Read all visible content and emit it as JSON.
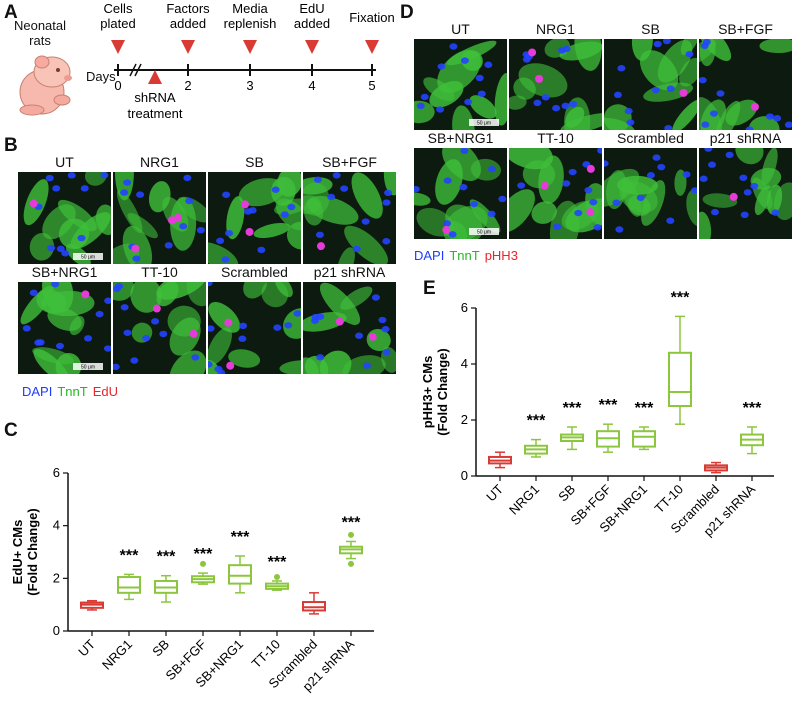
{
  "panels": {
    "A": {
      "label": "A",
      "animal_label_line1": "Neonatal",
      "animal_label_line2": "rats",
      "axis_label": "Days",
      "days": [
        "0",
        "2",
        "3",
        "4",
        "5"
      ],
      "events": [
        {
          "line1": "Cells",
          "line2": "plated",
          "day": 0
        },
        {
          "line1": "Factors",
          "line2": "added",
          "day": 2
        },
        {
          "line1": "Media",
          "line2": "replenish",
          "day": 3
        },
        {
          "line1": "EdU",
          "line2": "added",
          "day": 4
        },
        {
          "line1": "Fixation",
          "line2": "",
          "day": 5
        }
      ],
      "below_event": {
        "line1": "shRNA",
        "line2": "treatment"
      },
      "marker_color": "#d93a34"
    },
    "B": {
      "label": "B",
      "conditions": [
        "UT",
        "NRG1",
        "SB",
        "SB+FGF",
        "SB+NRG1",
        "TT-10",
        "Scrambled",
        "p21 shRNA"
      ],
      "scalebar_text": "50 μm",
      "legend": [
        {
          "text": "DAPI",
          "color": "#1a3cff"
        },
        {
          "text": "TnnT",
          "color": "#22b822"
        },
        {
          "text": "EdU",
          "color": "#e8242a"
        }
      ]
    },
    "D": {
      "label": "D",
      "conditions": [
        "UT",
        "NRG1",
        "SB",
        "SB+FGF",
        "SB+NRG1",
        "TT-10",
        "Scrambled",
        "p21 shRNA"
      ],
      "scalebar_text": "50 μm",
      "legend": [
        {
          "text": "DAPI",
          "color": "#1a3cff"
        },
        {
          "text": "TnnT",
          "color": "#22b822"
        },
        {
          "text": "pHH3",
          "color": "#e8242a"
        }
      ]
    },
    "C": {
      "label": "C"
    },
    "E": {
      "label": "E"
    }
  },
  "chart_data": [
    {
      "type": "box",
      "panel": "C",
      "ylabel_line1": "EdU+ CMs",
      "ylabel_line2": "(Fold Change)",
      "ylim": [
        0,
        6
      ],
      "yticks": [
        0,
        2,
        4,
        6
      ],
      "categories": [
        "UT",
        "NRG1",
        "SB",
        "SB+FGF",
        "SB+NRG1",
        "TT-10",
        "Scrambled",
        "p21 shRNA"
      ],
      "colors": [
        "#d93a34",
        "#8cc63f",
        "#8cc63f",
        "#8cc63f",
        "#8cc63f",
        "#8cc63f",
        "#d93a34",
        "#8cc63f"
      ],
      "boxes": [
        {
          "min": 0.8,
          "q1": 0.88,
          "median": 1.0,
          "q3": 1.08,
          "max": 1.15,
          "outliers": []
        },
        {
          "min": 1.2,
          "q1": 1.45,
          "median": 1.65,
          "q3": 2.05,
          "max": 2.15,
          "outliers": []
        },
        {
          "min": 1.1,
          "q1": 1.45,
          "median": 1.65,
          "q3": 1.9,
          "max": 2.1,
          "outliers": []
        },
        {
          "min": 1.78,
          "q1": 1.85,
          "median": 1.97,
          "q3": 2.08,
          "max": 2.2,
          "outliers": [
            2.55
          ]
        },
        {
          "min": 1.45,
          "q1": 1.8,
          "median": 2.1,
          "q3": 2.5,
          "max": 2.85,
          "outliers": []
        },
        {
          "min": 1.55,
          "q1": 1.6,
          "median": 1.7,
          "q3": 1.8,
          "max": 1.9,
          "outliers": [
            2.05
          ]
        },
        {
          "min": 0.65,
          "q1": 0.78,
          "median": 0.9,
          "q3": 1.1,
          "max": 1.45,
          "outliers": []
        },
        {
          "min": 2.75,
          "q1": 2.95,
          "median": 3.1,
          "q3": 3.2,
          "max": 3.4,
          "outliers": [
            3.65,
            2.55
          ]
        }
      ],
      "significance": [
        "",
        "***",
        "***",
        "***",
        "***",
        "***",
        "",
        "***"
      ]
    },
    {
      "type": "box",
      "panel": "E",
      "ylabel_line1": "pHH3+ CMs",
      "ylabel_line2": "(Fold Change)",
      "ylim": [
        0,
        6
      ],
      "yticks": [
        0,
        2,
        4,
        6
      ],
      "categories": [
        "UT",
        "NRG1",
        "SB",
        "SB+FGF",
        "SB+NRG1",
        "TT-10",
        "Scrambled",
        "p21 shRNA"
      ],
      "colors": [
        "#d93a34",
        "#8cc63f",
        "#8cc63f",
        "#8cc63f",
        "#8cc63f",
        "#8cc63f",
        "#d93a34",
        "#8cc63f"
      ],
      "boxes": [
        {
          "min": 0.3,
          "q1": 0.45,
          "median": 0.55,
          "q3": 0.68,
          "max": 0.85,
          "outliers": []
        },
        {
          "min": 0.68,
          "q1": 0.8,
          "median": 0.95,
          "q3": 1.08,
          "max": 1.3,
          "outliers": []
        },
        {
          "min": 0.95,
          "q1": 1.25,
          "median": 1.38,
          "q3": 1.48,
          "max": 1.75,
          "outliers": []
        },
        {
          "min": 0.85,
          "q1": 1.05,
          "median": 1.35,
          "q3": 1.6,
          "max": 1.85,
          "outliers": []
        },
        {
          "min": 0.95,
          "q1": 1.05,
          "median": 1.4,
          "q3": 1.6,
          "max": 1.75,
          "outliers": []
        },
        {
          "min": 1.85,
          "q1": 2.5,
          "median": 3.0,
          "q3": 4.4,
          "max": 5.7,
          "outliers": []
        },
        {
          "min": 0.12,
          "q1": 0.2,
          "median": 0.3,
          "q3": 0.38,
          "max": 0.48,
          "outliers": []
        },
        {
          "min": 0.8,
          "q1": 1.1,
          "median": 1.3,
          "q3": 1.48,
          "max": 1.75,
          "outliers": []
        }
      ],
      "significance": [
        "",
        "***",
        "***",
        "***",
        "***",
        "***",
        "",
        "***"
      ]
    }
  ]
}
